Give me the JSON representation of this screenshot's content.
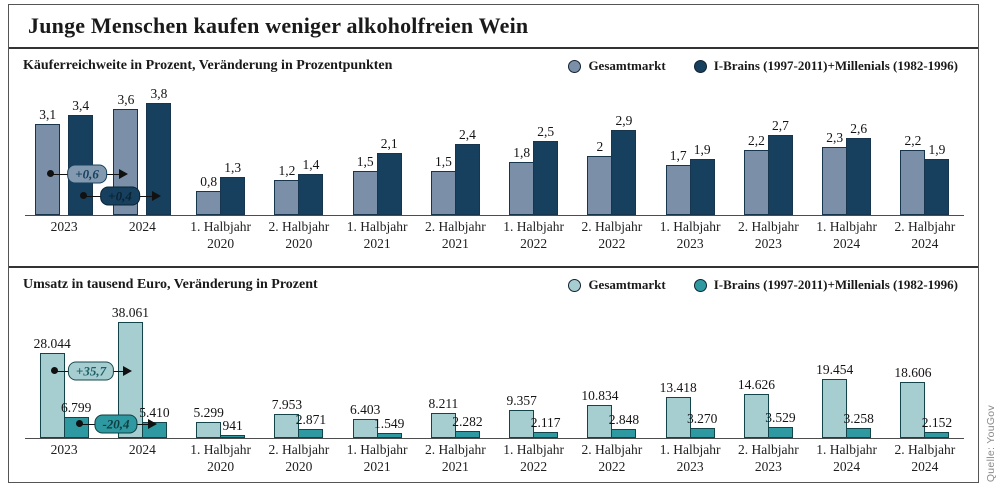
{
  "title": "Junge Menschen kaufen weniger alkoholfreien Wein",
  "source": "Quelle: YouGov",
  "panels": [
    {
      "subtitle": "Käuferreichweite in Prozent, Veränderung in Prozentpunkten",
      "legend": [
        {
          "label": "Gesamtmarkt",
          "color": "#7b90a8"
        },
        {
          "label": "I-Brains (1997-2011)+Millenials (1982-1996)",
          "color": "#16405e"
        }
      ],
      "colors": {
        "series0": "#7b90a8",
        "series1": "#16405e",
        "bar_border": "#17364d"
      },
      "callouts": [
        {
          "text": "+0,6",
          "fill": "#8399b0",
          "text_color": "#16405e",
          "border": "#16405e"
        },
        {
          "text": "+0,4",
          "fill": "#16405e",
          "text_color": "#0a2334",
          "border": "#0a2334"
        }
      ]
    },
    {
      "subtitle": "Umsatz in tausend Euro, Veränderung in Prozent",
      "legend": [
        {
          "label": "Gesamtmarkt",
          "color": "#a6cdd0"
        },
        {
          "label": "I-Brains (1997-2011)+Millenials (1982-1996)",
          "color": "#2e99a0"
        }
      ],
      "colors": {
        "series0": "#a6cdd0",
        "series1": "#2e99a0",
        "bar_border": "#134449"
      },
      "callouts": [
        {
          "text": "+35,7",
          "fill": "#a6cdd0",
          "text_color": "#1d5f66",
          "border": "#16494e"
        },
        {
          "text": "-20,4",
          "fill": "#2e99a0",
          "text_color": "#0f3d42",
          "border": "#0f3d42"
        }
      ]
    }
  ],
  "chart_data": [
    {
      "type": "bar",
      "title": "Käuferreichweite in Prozent, Veränderung in Prozentpunkten",
      "categories": [
        "2023",
        "2024",
        "1. Halbjahr 2020",
        "2. Halbjahr 2020",
        "1. Halbjahr 2021",
        "2. Halbjahr 2021",
        "1. Halbjahr 2022",
        "2. Halbjahr 2022",
        "1. Halbjahr 2023",
        "2. Halbjahr 2023",
        "1. Halbjahr 2024",
        "2. Halbjahr 2024"
      ],
      "series": [
        {
          "name": "Gesamtmarkt",
          "values": [
            3.1,
            3.6,
            0.8,
            1.2,
            1.5,
            1.5,
            1.8,
            2,
            1.7,
            2.2,
            2.3,
            2.2
          ],
          "labels": [
            "3,1",
            "3,6",
            "0,8",
            "1,2",
            "1,5",
            "1,5",
            "1,8",
            "2",
            "1,7",
            "2,2",
            "2,3",
            "2,2"
          ]
        },
        {
          "name": "I-Brains (1997-2011)+Millenials (1982-1996)",
          "values": [
            3.4,
            3.8,
            1.3,
            1.4,
            2.1,
            2.4,
            2.5,
            2.9,
            1.9,
            2.7,
            2.6,
            1.9
          ],
          "labels": [
            "3,4",
            "3,8",
            "1,3",
            "1,4",
            "2,1",
            "2,4",
            "2,5",
            "2,9",
            "1,9",
            "2,7",
            "2,6",
            "1,9"
          ]
        }
      ],
      "annotations": [
        {
          "text": "+0,6",
          "series": "Gesamtmarkt",
          "from": "2023",
          "to": "2024"
        },
        {
          "text": "+0,4",
          "series": "I-Brains (1997-2011)+Millenials (1982-1996)",
          "from": "2023",
          "to": "2024"
        }
      ],
      "ylim": [
        0,
        4
      ],
      "xlabel": "",
      "ylabel": "",
      "grid": false,
      "legend_position": "top-right"
    },
    {
      "type": "bar",
      "title": "Umsatz in tausend Euro, Veränderung in Prozent",
      "categories": [
        "2023",
        "2024",
        "1. Halbjahr 2020",
        "2. Halbjahr 2020",
        "1. Halbjahr 2021",
        "2. Halbjahr 2021",
        "1. Halbjahr 2022",
        "2. Halbjahr 2022",
        "1. Halbjahr 2023",
        "2. Halbjahr 2023",
        "1. Halbjahr 2024",
        "2. Halbjahr 2024"
      ],
      "series": [
        {
          "name": "Gesamtmarkt",
          "values": [
            28044,
            38061,
            5299,
            7953,
            6403,
            8211,
            9357,
            10834,
            13418,
            14626,
            19454,
            18606
          ],
          "labels": [
            "28.044",
            "38.061",
            "5.299",
            "7.953",
            "6.403",
            "8.211",
            "9.357",
            "10.834",
            "13.418",
            "14.626",
            "19.454",
            "18.606"
          ]
        },
        {
          "name": "I-Brains (1997-2011)+Millenials (1982-1996)",
          "values": [
            6799,
            5410,
            941,
            2871,
            1549,
            2282,
            2117,
            2848,
            3270,
            3529,
            3258,
            2152
          ],
          "labels": [
            "6.799",
            "5.410",
            "941",
            "2.871",
            "1.549",
            "2.282",
            "2.117",
            "2.848",
            "3.270",
            "3.529",
            "3.258",
            "2.152"
          ]
        }
      ],
      "annotations": [
        {
          "text": "+35,7",
          "series": "Gesamtmarkt",
          "from": "2023",
          "to": "2024"
        },
        {
          "text": "-20,4",
          "series": "I-Brains (1997-2011)+Millenials (1982-1996)",
          "from": "2023",
          "to": "2024"
        }
      ],
      "ylim": [
        0,
        39500
      ],
      "xlabel": "",
      "ylabel": "",
      "grid": false,
      "legend_position": "top-right"
    }
  ]
}
